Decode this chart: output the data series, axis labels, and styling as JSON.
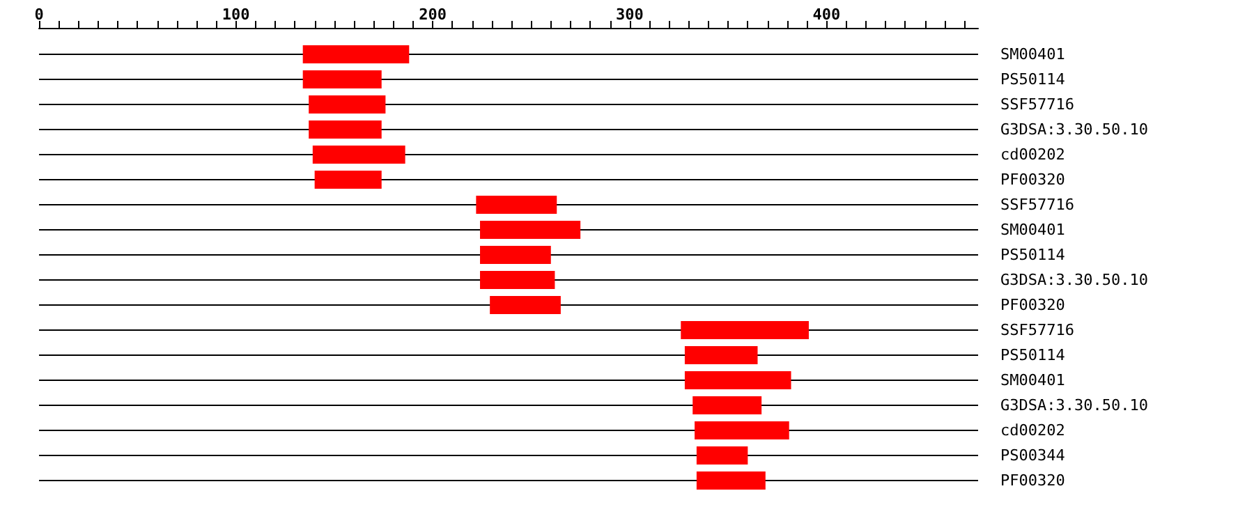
{
  "chart_data": {
    "type": "bar",
    "orientation": "horizontal",
    "grid": "y",
    "color": "#ff0000",
    "categories": [
      "SM00401",
      "PS50114",
      "SSF57716",
      "G3DSA:3.30.50.10",
      "cd00202",
      "PF00320",
      "SSF57716",
      "SM00401",
      "PS50114",
      "G3DSA:3.30.50.10",
      "PF00320",
      "SSF57716",
      "PS50114",
      "SM00401",
      "G3DSA:3.30.50.10",
      "cd00202",
      "PS00344",
      "PF00320"
    ],
    "base": [
      134,
      134,
      137,
      137,
      139,
      140,
      222,
      224,
      224,
      224,
      229,
      326,
      328,
      328,
      332,
      333,
      334,
      334
    ],
    "values": [
      54,
      40,
      39,
      37,
      47,
      34,
      41,
      51,
      36,
      38,
      36,
      65,
      37,
      54,
      35,
      48,
      26,
      35
    ],
    "xlim": [
      0,
      477
    ],
    "xticks": [
      0,
      {
        "value": 10,
        "label": null
      },
      {
        "value": 20,
        "label": null
      },
      {
        "value": 30,
        "label": null
      },
      {
        "value": 40,
        "label": null
      },
      {
        "value": 50,
        "label": null
      },
      {
        "value": 60,
        "label": null
      },
      {
        "value": 70,
        "label": null
      },
      {
        "value": 80,
        "label": null
      },
      {
        "value": 90,
        "label": null
      },
      100,
      {
        "value": 110,
        "label": null
      },
      {
        "value": 120,
        "label": null
      },
      {
        "value": 130,
        "label": null
      },
      {
        "value": 140,
        "label": null
      },
      {
        "value": 150,
        "label": null
      },
      {
        "value": 160,
        "label": null
      },
      {
        "value": 170,
        "label": null
      },
      {
        "value": 180,
        "label": null
      },
      {
        "value": 190,
        "label": null
      },
      200,
      {
        "value": 210,
        "label": null
      },
      {
        "value": 220,
        "label": null
      },
      {
        "value": 230,
        "label": null
      },
      {
        "value": 240,
        "label": null
      },
      {
        "value": 250,
        "label": null
      },
      {
        "value": 260,
        "label": null
      },
      {
        "value": 270,
        "label": null
      },
      {
        "value": 280,
        "label": null
      },
      {
        "value": 290,
        "label": null
      },
      300,
      {
        "value": 310,
        "label": null
      },
      {
        "value": 320,
        "label": null
      },
      {
        "value": 330,
        "label": null
      },
      {
        "value": 340,
        "label": null
      },
      {
        "value": 350,
        "label": null
      },
      {
        "value": 360,
        "label": null
      },
      {
        "value": 370,
        "label": null
      },
      {
        "value": 380,
        "label": null
      },
      {
        "value": 390,
        "label": null
      },
      400,
      {
        "value": 410,
        "label": null
      },
      {
        "value": 420,
        "label": null
      },
      {
        "value": 430,
        "label": null
      },
      {
        "value": 440,
        "label": null
      },
      {
        "value": 450,
        "label": null
      },
      {
        "value": 460,
        "label": null
      },
      {
        "value": 470,
        "label": null
      }
    ]
  }
}
